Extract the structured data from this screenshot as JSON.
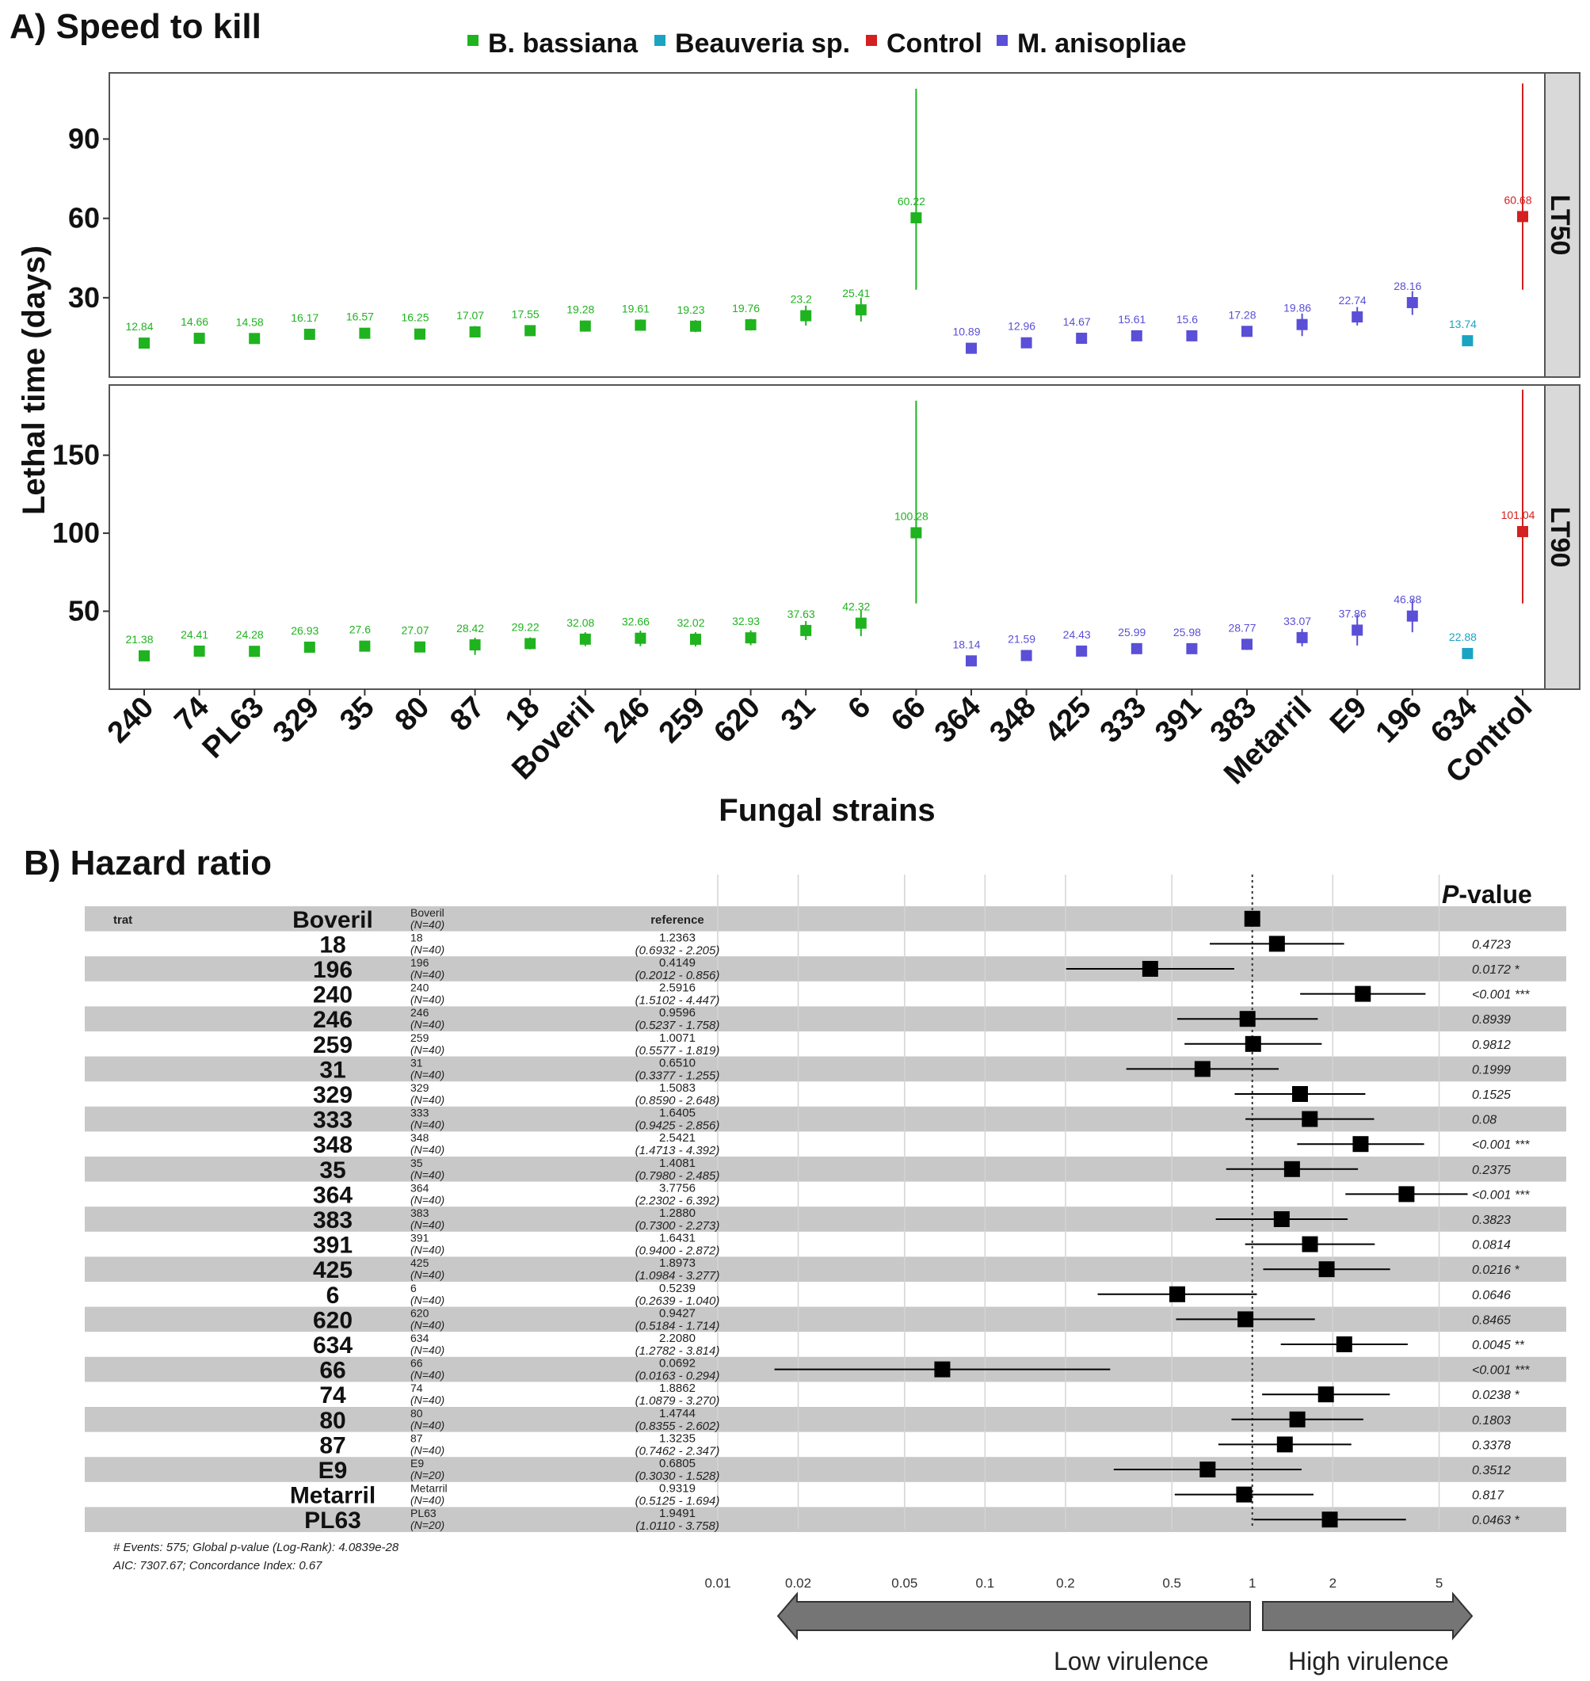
{
  "panel_a": {
    "title": "A) Speed to kill",
    "legend": [
      {
        "name": "B. bassiana",
        "color": "#1fb31f"
      },
      {
        "name": "Beauveria sp.",
        "color": "#1aa3c2"
      },
      {
        "name": "Control",
        "color": "#d42020"
      },
      {
        "name": "M. anisopliae",
        "color": "#5a4fd6"
      }
    ],
    "ylabel": "Lethal time (days)",
    "xlabel": "Fungal strains"
  },
  "panel_b": {
    "title": "B) Hazard ratio",
    "trat_label": "trat",
    "pvalue_header_prefix": "P",
    "pvalue_header_suffix": "-value",
    "reference_label": "reference",
    "footer_line1": "# Events: 575; Global p-value (Log-Rank): 4.0839e-28",
    "footer_line2": "AIC: 7307.67; Concordance Index: 0.67",
    "arrow_low": "Low virulence",
    "arrow_high": "High virulence",
    "x_ticks": [
      "0.01",
      "0.02",
      "0.05",
      "0.1",
      "0.2",
      "0.5",
      "1",
      "2",
      "5"
    ]
  },
  "chart_data": [
    {
      "type": "scatter",
      "title": "A) Speed to kill",
      "xlabel": "Fungal strains",
      "ylabel": "Lethal time (days)",
      "categories": [
        "240",
        "74",
        "PL63",
        "329",
        "35",
        "80",
        "87",
        "18",
        "Boveril",
        "246",
        "259",
        "620",
        "31",
        "6",
        "66",
        "364",
        "348",
        "425",
        "333",
        "391",
        "383",
        "Metarril",
        "E9",
        "196",
        "634",
        "Control"
      ],
      "groups": [
        "B. bassiana",
        "B. bassiana",
        "B. bassiana",
        "B. bassiana",
        "B. bassiana",
        "B. bassiana",
        "B. bassiana",
        "B. bassiana",
        "B. bassiana",
        "B. bassiana",
        "B. bassiana",
        "B. bassiana",
        "B. bassiana",
        "B. bassiana",
        "B. bassiana",
        "M. anisopliae",
        "M. anisopliae",
        "M. anisopliae",
        "M. anisopliae",
        "M. anisopliae",
        "M. anisopliae",
        "M. anisopliae",
        "M. anisopliae",
        "M. anisopliae",
        "Beauveria sp.",
        "Control"
      ],
      "facets": [
        {
          "name": "LT50",
          "ylim": [
            0,
            115
          ],
          "yticks": [
            30,
            60,
            90
          ],
          "values": [
            12.84,
            14.66,
            14.58,
            16.17,
            16.57,
            16.25,
            17.07,
            17.55,
            19.28,
            19.61,
            19.23,
            19.76,
            23.2,
            25.41,
            60.22,
            10.89,
            12.96,
            14.67,
            15.61,
            15.6,
            17.28,
            19.86,
            22.74,
            28.16,
            13.74,
            60.68
          ],
          "labels": [
            "12.84",
            "14.66",
            "14.58",
            "16.17",
            "16.57",
            "16.25",
            "17.07",
            "17.55",
            "19.28",
            "19.61",
            "19.23",
            "19.76",
            "23.2",
            "25.41",
            "60.22",
            "10.89",
            "12.96",
            "14.67",
            "15.61",
            "15.6",
            "17.28",
            "19.86",
            "22.74",
            "28.16",
            "13.74",
            "60.68"
          ],
          "lower": [
            11.5,
            13.4,
            12.6,
            14.4,
            15,
            14.2,
            15,
            15.8,
            17.2,
            17.5,
            17,
            17.6,
            19.5,
            21,
            33,
            9.8,
            11.6,
            13.3,
            14.3,
            14.3,
            15.8,
            15.5,
            19.5,
            23.5,
            12.4,
            33
          ],
          "upper": [
            14.3,
            16.1,
            16.5,
            18.2,
            18.2,
            18.3,
            19.3,
            19.5,
            21.4,
            21.8,
            21.5,
            22,
            27,
            30,
            109,
            11.9,
            14.3,
            16.2,
            17.1,
            17,
            18.9,
            24,
            26.5,
            32.5,
            15.1,
            111
          ]
        },
        {
          "name": "LT90",
          "ylim": [
            0,
            195
          ],
          "yticks": [
            50,
            100,
            150
          ],
          "values": [
            21.38,
            24.41,
            24.28,
            26.93,
            27.6,
            27.07,
            28.42,
            29.22,
            32.08,
            32.66,
            32.02,
            32.93,
            37.63,
            42.32,
            100.28,
            18.14,
            21.59,
            24.43,
            25.99,
            25.98,
            28.77,
            33.07,
            37.86,
            46.88,
            22.88,
            101.04
          ],
          "labels": [
            "21.38",
            "24.41",
            "24.28",
            "26.93",
            "27.6",
            "27.07",
            "28.42",
            "29.22",
            "32.08",
            "32.66",
            "32.02",
            "32.93",
            "37.63",
            "42.32",
            "100.28",
            "18.14",
            "21.59",
            "24.43",
            "25.99",
            "25.98",
            "28.77",
            "33.07",
            "37.86",
            "46.88",
            "22.88",
            "101.04"
          ],
          "lower": [
            19,
            21.8,
            21,
            23.8,
            24.6,
            24,
            22,
            25.5,
            27.6,
            27.6,
            27.5,
            28.2,
            31.5,
            34,
            55,
            16.2,
            19.2,
            21.6,
            23,
            23,
            25.2,
            27.5,
            28,
            36.5,
            20.6,
            55
          ],
          "upper": [
            23.8,
            27,
            27.5,
            30.3,
            31,
            30.4,
            33,
            33.2,
            36.5,
            37.5,
            36.5,
            37.7,
            43.7,
            51,
            185,
            20.1,
            24,
            27.2,
            29,
            28.9,
            32.3,
            38.7,
            47.8,
            57.2,
            25.2,
            192
          ]
        }
      ]
    },
    {
      "type": "forest",
      "title": "B) Hazard ratio",
      "xscale": "log",
      "xlim": [
        0.01,
        6.5
      ],
      "reference_line": 1,
      "rows": [
        {
          "strain": "Boveril",
          "n": "(N=40)",
          "hr": null,
          "hr_label": "reference",
          "ci_label": "",
          "lo": null,
          "hi": null,
          "p": ""
        },
        {
          "strain": "18",
          "n": "(N=40)",
          "hr": 1.2363,
          "hr_label": "1.2363",
          "ci_label": "(0.6932 - 2.205)",
          "lo": 0.6932,
          "hi": 2.205,
          "p": "0.4723"
        },
        {
          "strain": "196",
          "n": "(N=40)",
          "hr": 0.4149,
          "hr_label": "0.4149",
          "ci_label": "(0.2012 - 0.856)",
          "lo": 0.2012,
          "hi": 0.856,
          "p": "0.0172 *"
        },
        {
          "strain": "240",
          "n": "(N=40)",
          "hr": 2.5916,
          "hr_label": "2.5916",
          "ci_label": "(1.5102 - 4.447)",
          "lo": 1.5102,
          "hi": 4.447,
          "p": "<0.001 ***"
        },
        {
          "strain": "246",
          "n": "(N=40)",
          "hr": 0.9596,
          "hr_label": "0.9596",
          "ci_label": "(0.5237 - 1.758)",
          "lo": 0.5237,
          "hi": 1.758,
          "p": "0.8939"
        },
        {
          "strain": "259",
          "n": "(N=40)",
          "hr": 1.0071,
          "hr_label": "1.0071",
          "ci_label": "(0.5577 - 1.819)",
          "lo": 0.5577,
          "hi": 1.819,
          "p": "0.9812"
        },
        {
          "strain": "31",
          "n": "(N=40)",
          "hr": 0.651,
          "hr_label": "0.6510",
          "ci_label": "(0.3377 - 1.255)",
          "lo": 0.3377,
          "hi": 1.255,
          "p": "0.1999"
        },
        {
          "strain": "329",
          "n": "(N=40)",
          "hr": 1.5083,
          "hr_label": "1.5083",
          "ci_label": "(0.8590 - 2.648)",
          "lo": 0.859,
          "hi": 2.648,
          "p": "0.1525"
        },
        {
          "strain": "333",
          "n": "(N=40)",
          "hr": 1.6405,
          "hr_label": "1.6405",
          "ci_label": "(0.9425 - 2.856)",
          "lo": 0.9425,
          "hi": 2.856,
          "p": "0.08"
        },
        {
          "strain": "348",
          "n": "(N=40)",
          "hr": 2.5421,
          "hr_label": "2.5421",
          "ci_label": "(1.4713 - 4.392)",
          "lo": 1.4713,
          "hi": 4.392,
          "p": "<0.001 ***"
        },
        {
          "strain": "35",
          "n": "(N=40)",
          "hr": 1.4081,
          "hr_label": "1.4081",
          "ci_label": "(0.7980 - 2.485)",
          "lo": 0.798,
          "hi": 2.485,
          "p": "0.2375"
        },
        {
          "strain": "364",
          "n": "(N=40)",
          "hr": 3.7756,
          "hr_label": "3.7756",
          "ci_label": "(2.2302 - 6.392)",
          "lo": 2.2302,
          "hi": 6.392,
          "p": "<0.001 ***"
        },
        {
          "strain": "383",
          "n": "(N=40)",
          "hr": 1.288,
          "hr_label": "1.2880",
          "ci_label": "(0.7300 - 2.273)",
          "lo": 0.73,
          "hi": 2.273,
          "p": "0.3823"
        },
        {
          "strain": "391",
          "n": "(N=40)",
          "hr": 1.6431,
          "hr_label": "1.6431",
          "ci_label": "(0.9400 - 2.872)",
          "lo": 0.94,
          "hi": 2.872,
          "p": "0.0814"
        },
        {
          "strain": "425",
          "n": "(N=40)",
          "hr": 1.8973,
          "hr_label": "1.8973",
          "ci_label": "(1.0984 - 3.277)",
          "lo": 1.0984,
          "hi": 3.277,
          "p": "0.0216 *"
        },
        {
          "strain": "6",
          "n": "(N=40)",
          "hr": 0.5239,
          "hr_label": "0.5239",
          "ci_label": "(0.2639 - 1.040)",
          "lo": 0.2639,
          "hi": 1.04,
          "p": "0.0646"
        },
        {
          "strain": "620",
          "n": "(N=40)",
          "hr": 0.9427,
          "hr_label": "0.9427",
          "ci_label": "(0.5184 - 1.714)",
          "lo": 0.5184,
          "hi": 1.714,
          "p": "0.8465"
        },
        {
          "strain": "634",
          "n": "(N=40)",
          "hr": 2.208,
          "hr_label": "2.2080",
          "ci_label": "(1.2782 - 3.814)",
          "lo": 1.2782,
          "hi": 3.814,
          "p": "0.0045 **"
        },
        {
          "strain": "66",
          "n": "(N=40)",
          "hr": 0.0692,
          "hr_label": "0.0692",
          "ci_label": "(0.0163 - 0.294)",
          "lo": 0.0163,
          "hi": 0.294,
          "p": "<0.001 ***"
        },
        {
          "strain": "74",
          "n": "(N=40)",
          "hr": 1.8862,
          "hr_label": "1.8862",
          "ci_label": "(1.0879 - 3.270)",
          "lo": 1.0879,
          "hi": 3.27,
          "p": "0.0238 *"
        },
        {
          "strain": "80",
          "n": "(N=40)",
          "hr": 1.4744,
          "hr_label": "1.4744",
          "ci_label": "(0.8355 - 2.602)",
          "lo": 0.8355,
          "hi": 2.602,
          "p": "0.1803"
        },
        {
          "strain": "87",
          "n": "(N=40)",
          "hr": 1.3235,
          "hr_label": "1.3235",
          "ci_label": "(0.7462 - 2.347)",
          "lo": 0.7462,
          "hi": 2.347,
          "p": "0.3378"
        },
        {
          "strain": "E9",
          "n": "(N=20)",
          "hr": 0.6805,
          "hr_label": "0.6805",
          "ci_label": "(0.3030 - 1.528)",
          "lo": 0.303,
          "hi": 1.528,
          "p": "0.3512"
        },
        {
          "strain": "Metarril",
          "n": "(N=40)",
          "hr": 0.9319,
          "hr_label": "0.9319",
          "ci_label": "(0.5125 - 1.694)",
          "lo": 0.5125,
          "hi": 1.694,
          "p": "0.817"
        },
        {
          "strain": "PL63",
          "n": "(N=20)",
          "hr": 1.9491,
          "hr_label": "1.9491",
          "ci_label": "(1.0110 - 3.758)",
          "lo": 1.011,
          "hi": 3.758,
          "p": "0.0463 *"
        }
      ]
    }
  ]
}
